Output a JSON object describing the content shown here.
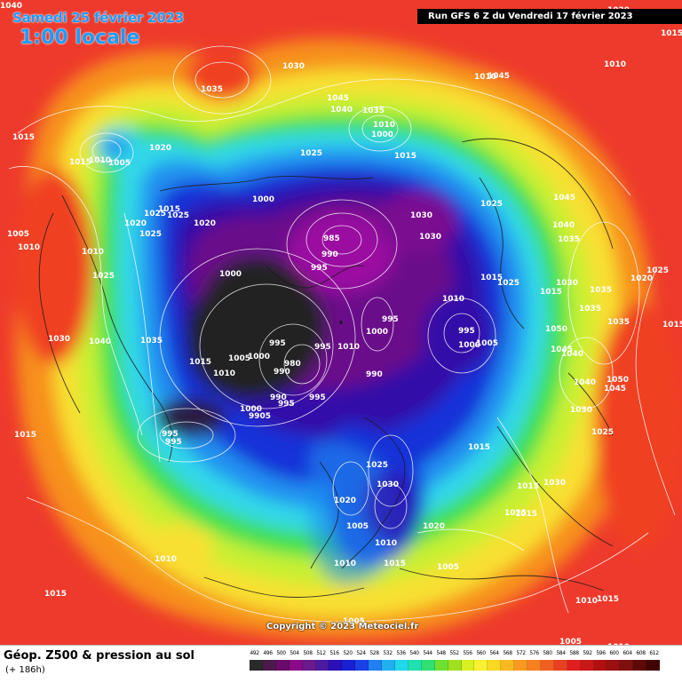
{
  "header": {
    "date_label": "Samedi 25 février 2023",
    "time_label": "1:00 locale",
    "run_label": "Run GFS 6 Z du Vendredi 17 février 2023"
  },
  "footer": {
    "copyright": "Copyright © 2023 Meteociel.fr"
  },
  "legend": {
    "title": "Géop. Z500 & pression au sol",
    "subtitle": "(+ 186h)",
    "scale_values": [
      "492",
      "496",
      "500",
      "504",
      "508",
      "512",
      "516",
      "520",
      "524",
      "528",
      "532",
      "536",
      "540",
      "544",
      "548",
      "552",
      "556",
      "560",
      "564",
      "568",
      "572",
      "576",
      "580",
      "584",
      "588",
      "592",
      "596",
      "600",
      "604",
      "608",
      "612"
    ],
    "scale_colors": [
      "#2a2a2a",
      "#4a1a4a",
      "#6a0a6a",
      "#8a0a8a",
      "#6a1a8a",
      "#4a1aa0",
      "#2a10b8",
      "#1a20d0",
      "#1a40e8",
      "#2080f0",
      "#20b0f0",
      "#20d8e8",
      "#20e0b0",
      "#30e070",
      "#70e030",
      "#a0e020",
      "#d8f020",
      "#f8f030",
      "#f8d820",
      "#f8b820",
      "#f89820",
      "#f88020",
      "#f06020",
      "#e84020",
      "#e02020",
      "#c81818",
      "#b01010",
      "#981010",
      "#801010",
      "#600808",
      "#400404"
    ]
  },
  "map": {
    "colors": {
      "ocean": "#ee3a2c",
      "red": "#f04020",
      "orange": "#f7901e",
      "yellow": "#f8e030",
      "lime": "#c8f030",
      "green": "#40e050",
      "cyan": "#30d8e8",
      "blue_light": "#2090f0",
      "blue": "#1830d8",
      "indigo": "#3010a8",
      "purple": "#6a0a8a",
      "magenta": "#9a0aa0",
      "black": "#202020",
      "coast": "#1a1a1a",
      "isobar": "#ffffff"
    },
    "pressure_labels": [
      {
        "text": "1030"
      },
      {
        "text": "1035"
      },
      {
        "text": "1015"
      },
      {
        "text": "1015"
      },
      {
        "text": "1010"
      },
      {
        "text": "1005"
      },
      {
        "text": "1020"
      },
      {
        "text": "1015"
      },
      {
        "text": "1025"
      },
      {
        "text": "1025"
      },
      {
        "text": "1020"
      },
      {
        "text": "1020"
      },
      {
        "text": "1025"
      },
      {
        "text": "1005"
      },
      {
        "text": "1010"
      },
      {
        "text": "1010"
      },
      {
        "text": "1025"
      },
      {
        "text": "1030"
      },
      {
        "text": "1040"
      },
      {
        "text": "1035"
      },
      {
        "text": "1015"
      },
      {
        "text": "1010"
      },
      {
        "text": "1005"
      },
      {
        "text": "1000"
      },
      {
        "text": "995"
      },
      {
        "text": "980"
      },
      {
        "text": "990"
      },
      {
        "text": "990"
      },
      {
        "text": "995"
      },
      {
        "text": "1000"
      },
      {
        "text": "9905"
      },
      {
        "text": "995"
      },
      {
        "text": "995"
      },
      {
        "text": "995"
      },
      {
        "text": "990"
      },
      {
        "text": "995"
      },
      {
        "text": "985"
      },
      {
        "text": "990"
      },
      {
        "text": "1000"
      },
      {
        "text": "1025"
      },
      {
        "text": "1045"
      },
      {
        "text": "1040"
      },
      {
        "text": "1035"
      },
      {
        "text": "1010"
      },
      {
        "text": "1000"
      },
      {
        "text": "1015"
      },
      {
        "text": "1030"
      },
      {
        "text": "1030"
      },
      {
        "text": "995"
      },
      {
        "text": "1000"
      },
      {
        "text": "1010"
      },
      {
        "text": "995"
      },
      {
        "text": "1000"
      },
      {
        "text": "1010"
      },
      {
        "text": "995"
      },
      {
        "text": "1000"
      },
      {
        "text": "1005"
      },
      {
        "text": "1025"
      },
      {
        "text": "1025"
      },
      {
        "text": "1015"
      },
      {
        "text": "1015"
      },
      {
        "text": "1010"
      },
      {
        "text": "1045"
      },
      {
        "text": "1045"
      },
      {
        "text": "1040"
      },
      {
        "text": "1035"
      },
      {
        "text": "1030"
      },
      {
        "text": "1035"
      },
      {
        "text": "1050"
      },
      {
        "text": "1045"
      },
      {
        "text": "1040"
      },
      {
        "text": "1040"
      },
      {
        "text": "1050"
      },
      {
        "text": "1045"
      },
      {
        "text": "1035"
      },
      {
        "text": "1035"
      },
      {
        "text": "1025"
      },
      {
        "text": "1020"
      },
      {
        "text": "1025"
      },
      {
        "text": "1015"
      },
      {
        "text": "1015"
      },
      {
        "text": "1030"
      },
      {
        "text": "1025"
      },
      {
        "text": "1030"
      },
      {
        "text": "1020"
      },
      {
        "text": "1005"
      },
      {
        "text": "1010"
      },
      {
        "text": "1020"
      },
      {
        "text": "1005"
      },
      {
        "text": "1010"
      },
      {
        "text": "1015"
      },
      {
        "text": "1015"
      },
      {
        "text": "1025"
      },
      {
        "text": "1015"
      },
      {
        "text": "1010"
      },
      {
        "text": "1015"
      },
      {
        "text": "1005"
      },
      {
        "text": "1005"
      },
      {
        "text": "1010"
      },
      {
        "text": "1010"
      },
      {
        "text": "1015"
      },
      {
        "text": "1020"
      },
      {
        "text": "1015"
      },
      {
        "text": "1010"
      },
      {
        "text": "1015"
      },
      {
        "text": "1030"
      },
      {
        "text": "1040"
      }
    ]
  }
}
